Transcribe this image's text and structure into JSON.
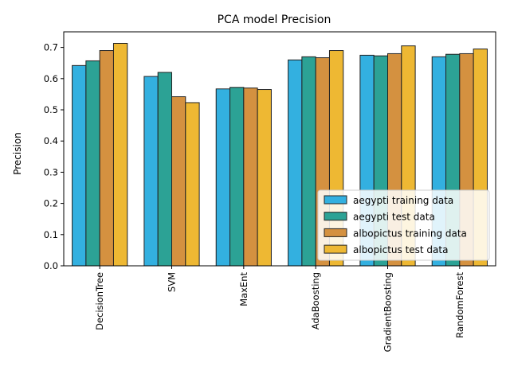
{
  "chart_data": {
    "type": "bar",
    "title": "PCA model Precision",
    "xlabel": "",
    "ylabel": "Precision",
    "ylim": [
      0,
      0.75
    ],
    "yticks": [
      0.0,
      0.1,
      0.2,
      0.3,
      0.4,
      0.5,
      0.6,
      0.7
    ],
    "ytick_labels": [
      "0.0",
      "0.1",
      "0.2",
      "0.3",
      "0.4",
      "0.5",
      "0.6",
      "0.7"
    ],
    "categories": [
      "DecisionTree",
      "SVM",
      "MaxEnt",
      "AdaBoosting",
      "GradientBoosting",
      "RandomForest"
    ],
    "grid": false,
    "legend_position": "lower-right",
    "series": [
      {
        "name": "aegypti training data",
        "color": "#33b0e0",
        "values": [
          0.642,
          0.607,
          0.567,
          0.66,
          0.675,
          0.67
        ]
      },
      {
        "name": "aegypti test data",
        "color": "#2ca295",
        "values": [
          0.657,
          0.62,
          0.572,
          0.67,
          0.673,
          0.678
        ]
      },
      {
        "name": "albopictus training data",
        "color": "#d49140",
        "values": [
          0.69,
          0.542,
          0.57,
          0.667,
          0.68,
          0.68
        ]
      },
      {
        "name": "albopictus test data",
        "color": "#eeb833",
        "values": [
          0.713,
          0.523,
          0.565,
          0.69,
          0.705,
          0.695
        ]
      }
    ]
  }
}
